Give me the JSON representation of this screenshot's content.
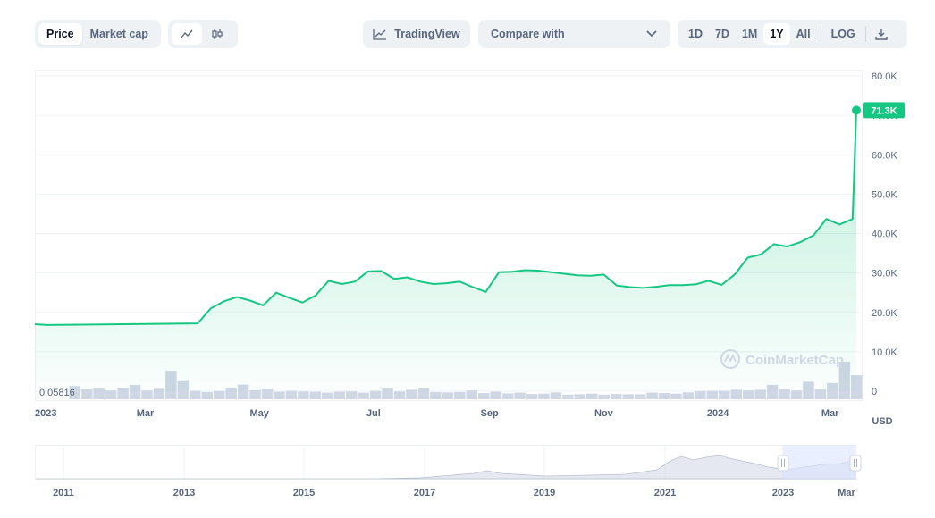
{
  "toolbar": {
    "price_label": "Price",
    "market_cap_label": "Market cap",
    "line_icon": "line-chart-icon",
    "candle_icon": "candlestick-icon",
    "tradingview_label": "TradingView",
    "compare_label": "Compare with",
    "ranges": [
      "1D",
      "7D",
      "1M",
      "1Y",
      "All",
      "LOG"
    ],
    "active_range": "1Y",
    "download_icon": "download-icon"
  },
  "colors": {
    "line": "#16c784",
    "volume": "#cfd6e4",
    "badge": "#16c784",
    "text": "#58667e"
  },
  "watermark": "CoinMarketCap",
  "chart_data": {
    "type": "area",
    "title": "",
    "ylabel": "",
    "currency_label": "USD",
    "ylim": [
      0,
      80000
    ],
    "y_ticks": [
      "80.0K",
      "70.0K",
      "60.0K",
      "50.0K",
      "40.0K",
      "30.0K",
      "20.0K",
      "10.0K",
      "0"
    ],
    "x_ticks": [
      "2023",
      "Mar",
      "May",
      "Jul",
      "Sep",
      "Nov",
      "2024",
      "Mar"
    ],
    "current_value": 71300,
    "current_label": "71.3K",
    "volume_min_label": "0.05816",
    "series": [
      {
        "x": [
          "2023-03-15",
          "2023-03-22",
          "2023-03-29",
          "2023-04-05",
          "2023-04-12",
          "2023-04-19",
          "2023-04-26",
          "2023-05-03",
          "2023-05-10",
          "2023-05-17",
          "2023-05-24",
          "2023-05-31",
          "2023-06-07",
          "2023-06-14",
          "2023-06-21",
          "2023-06-28",
          "2023-07-05",
          "2023-07-12",
          "2023-07-19",
          "2023-07-26",
          "2023-08-02",
          "2023-08-09",
          "2023-08-16",
          "2023-08-23",
          "2023-08-30",
          "2023-09-06",
          "2023-09-13",
          "2023-09-20",
          "2023-09-27",
          "2023-10-04",
          "2023-10-11",
          "2023-10-18",
          "2023-10-25",
          "2023-11-01",
          "2023-11-08",
          "2023-11-15",
          "2023-11-22",
          "2023-11-29",
          "2023-12-06",
          "2023-12-13",
          "2023-12-20",
          "2023-12-27",
          "2024-01-03",
          "2024-01-10",
          "2024-01-17",
          "2024-01-24",
          "2024-01-31",
          "2024-02-07",
          "2024-02-14",
          "2024-02-21",
          "2024-02-28",
          "2024-03-06",
          "2024-03-13",
          "2024-03-15"
        ],
        "values": [
          17000,
          16800,
          17200,
          21000,
          22800,
          23900,
          23000,
          21800,
          25000,
          23700,
          22500,
          24300,
          28000,
          27200,
          27800,
          30400,
          30500,
          28500,
          28900,
          27800,
          27200,
          27400,
          27800,
          26400,
          25200,
          30200,
          30300,
          30700,
          30600,
          30200,
          29800,
          29400,
          29300,
          29600,
          26800,
          26400,
          26200,
          26500,
          26900,
          26900,
          27100,
          28000,
          27000,
          29600,
          33900,
          34700,
          37300,
          36700,
          37800,
          39500,
          43700,
          42300,
          43700,
          71300
        ]
      }
    ],
    "volume": {
      "values": [
        4200,
        3100,
        3400,
        2800,
        3700,
        4600,
        2800,
        3300,
        9100,
        5800,
        2700,
        2300,
        2600,
        3500,
        4700,
        2900,
        3100,
        2400,
        2700,
        2500,
        2400,
        2100,
        2400,
        2500,
        2100,
        2700,
        3400,
        2500,
        3000,
        3400,
        2300,
        2200,
        2300,
        2800,
        2000,
        2400,
        1900,
        2100,
        1700,
        1800,
        2200,
        1500,
        1600,
        1800,
        1500,
        1700,
        1600,
        1600,
        2100,
        2000,
        1800,
        2200,
        2600,
        2700,
        2700,
        3000,
        2800,
        3000,
        4600,
        3100,
        2800,
        5600,
        3100,
        5200,
        12000,
        7700
      ]
    }
  },
  "navigator": {
    "x_ticks": [
      "2011",
      "2013",
      "2015",
      "2017",
      "2019",
      "2021",
      "2023",
      "Mar"
    ]
  }
}
